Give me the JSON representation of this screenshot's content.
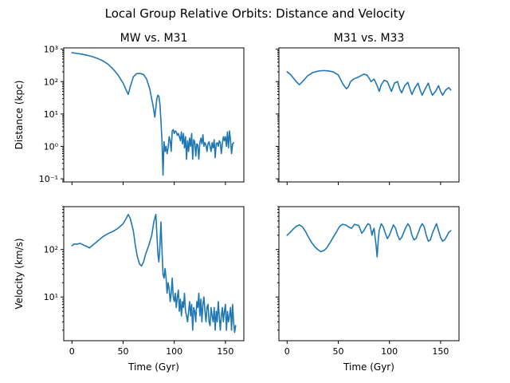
{
  "title": "Local Group Relative Orbits: Distance and Velocity",
  "colors": {
    "series": "#1f77b4"
  },
  "chart_data": [
    {
      "type": "line",
      "title": "MW vs. M31",
      "xlabel": "",
      "ylabel": "Distance (kpc)",
      "yscale": "log",
      "xlim": [
        -8,
        168
      ],
      "ylim": [
        0.08,
        1100
      ],
      "yticks": [
        {
          "v": 0.1,
          "label": "10⁻¹"
        },
        {
          "v": 1,
          "label": "10⁰"
        },
        {
          "v": 10,
          "label": "10¹"
        },
        {
          "v": 100,
          "label": "10²"
        },
        {
          "v": 1000,
          "label": "10³"
        }
      ],
      "xticks": [
        {
          "v": 0,
          "label": ""
        },
        {
          "v": 50,
          "label": ""
        },
        {
          "v": 100,
          "label": ""
        },
        {
          "v": 150,
          "label": ""
        }
      ],
      "series": [
        {
          "x": [
            0,
            5,
            10,
            15,
            20,
            25,
            30,
            35,
            40,
            45,
            50,
            53,
            55,
            57,
            60,
            63,
            66,
            70,
            73,
            76,
            79,
            81,
            83,
            84,
            85,
            86,
            87,
            88,
            89,
            90,
            91,
            92,
            93,
            94,
            95,
            96,
            97,
            98,
            99,
            100,
            101,
            102,
            103,
            104,
            105,
            106,
            107,
            108,
            109,
            110,
            111,
            112,
            113,
            114,
            115,
            116,
            117,
            118,
            119,
            120,
            121,
            122,
            123,
            124,
            125,
            126,
            127,
            128,
            129,
            130,
            131,
            132,
            133,
            134,
            135,
            136,
            137,
            138,
            139,
            140,
            141,
            142,
            143,
            144,
            145,
            146,
            147,
            148,
            149,
            150,
            151,
            152,
            153,
            154,
            155,
            156,
            157,
            158
          ],
          "y": [
            780,
            740,
            700,
            650,
            590,
            520,
            440,
            350,
            250,
            160,
            90,
            55,
            40,
            70,
            140,
            175,
            180,
            165,
            120,
            60,
            20,
            8,
            30,
            38,
            35,
            20,
            6,
            1.5,
            0.13,
            1.4,
            0.7,
            1.0,
            0.6,
            0.9,
            2.0,
            1.5,
            0.7,
            3.0,
            3.3,
            2.5,
            3.0,
            2.8,
            2.2,
            2.5,
            2.0,
            1.5,
            2.8,
            1.2,
            2.5,
            0.9,
            2.0,
            0.4,
            1.5,
            0.7,
            1.8,
            1.0,
            2.5,
            0.4,
            1.6,
            1.4,
            0.5,
            1.2,
            1.1,
            0.4,
            1.3,
            1.8,
            1.2,
            2.3,
            1.0,
            1.3,
            1.1,
            0.7,
            1.2,
            1.4,
            1.0,
            0.7,
            1.3,
            0.9,
            1.6,
            0.45,
            1.2,
            1.3,
            1.0,
            1.5,
            1.3,
            0.6,
            1.2,
            2.0,
            1.5,
            2.0,
            1.0,
            2.8,
            0.9,
            3.0,
            1.5,
            0.6,
            1.2,
            1.3
          ]
        }
      ]
    },
    {
      "type": "line",
      "title": "M31 vs. M33",
      "xlabel": "",
      "ylabel": "",
      "yscale": "log",
      "xlim": [
        -8,
        168
      ],
      "ylim": [
        0.08,
        1100
      ],
      "yticks": [
        {
          "v": 0.1,
          "label": ""
        },
        {
          "v": 1,
          "label": ""
        },
        {
          "v": 10,
          "label": ""
        },
        {
          "v": 100,
          "label": ""
        },
        {
          "v": 1000,
          "label": ""
        }
      ],
      "xticks": [
        {
          "v": 0,
          "label": ""
        },
        {
          "v": 50,
          "label": ""
        },
        {
          "v": 100,
          "label": ""
        },
        {
          "v": 150,
          "label": ""
        }
      ],
      "series": [
        {
          "x": [
            0,
            3,
            6,
            9,
            12,
            15,
            20,
            25,
            30,
            35,
            40,
            45,
            50,
            55,
            58,
            60,
            62,
            65,
            70,
            75,
            78,
            80,
            82,
            85,
            88,
            90,
            92,
            95,
            98,
            100,
            102,
            105,
            108,
            110,
            112,
            115,
            118,
            120,
            122,
            125,
            128,
            130,
            132,
            135,
            138,
            140,
            142,
            145,
            148,
            150,
            152,
            155,
            158,
            160
          ],
          "y": [
            200,
            170,
            130,
            100,
            80,
            100,
            150,
            190,
            210,
            220,
            215,
            200,
            160,
            80,
            60,
            70,
            100,
            120,
            140,
            170,
            160,
            130,
            100,
            120,
            75,
            50,
            80,
            110,
            100,
            70,
            50,
            90,
            100,
            60,
            45,
            75,
            95,
            60,
            40,
            65,
            90,
            55,
            38,
            60,
            90,
            55,
            38,
            50,
            75,
            50,
            38,
            55,
            65,
            55
          ]
        }
      ]
    },
    {
      "type": "line",
      "title": "",
      "xlabel": "Time (Gyr)",
      "ylabel": "Velocity (km/s)",
      "yscale": "log",
      "xlim": [
        -8,
        168
      ],
      "ylim": [
        1.2,
        800
      ],
      "yticks": [
        {
          "v": 10,
          "label": "10¹"
        },
        {
          "v": 100,
          "label": "10²"
        }
      ],
      "xticks": [
        {
          "v": 0,
          "label": "0"
        },
        {
          "v": 50,
          "label": "50"
        },
        {
          "v": 100,
          "label": "100"
        },
        {
          "v": 150,
          "label": "150"
        }
      ],
      "series": [
        {
          "x": [
            0,
            2,
            5,
            8,
            11,
            14,
            17,
            20,
            25,
            30,
            35,
            40,
            45,
            50,
            53,
            55,
            57,
            60,
            62,
            64,
            66,
            68,
            70,
            72,
            75,
            78,
            80,
            82,
            84,
            85,
            86,
            87,
            88,
            89,
            90,
            91,
            92,
            93,
            94,
            95,
            96,
            97,
            98,
            99,
            100,
            101,
            102,
            103,
            104,
            105,
            106,
            107,
            108,
            109,
            110,
            111,
            112,
            113,
            114,
            115,
            116,
            117,
            118,
            119,
            120,
            121,
            122,
            123,
            124,
            125,
            126,
            127,
            128,
            129,
            130,
            131,
            132,
            133,
            134,
            135,
            136,
            137,
            138,
            139,
            140,
            141,
            142,
            143,
            144,
            145,
            146,
            147,
            148,
            149,
            150,
            151,
            152,
            153,
            154,
            155,
            156,
            157,
            158,
            159,
            160
          ],
          "y": [
            120,
            130,
            130,
            135,
            125,
            118,
            108,
            122,
            150,
            185,
            215,
            240,
            280,
            350,
            450,
            550,
            450,
            250,
            120,
            70,
            50,
            45,
            55,
            80,
            120,
            200,
            380,
            550,
            80,
            55,
            120,
            380,
            100,
            30,
            25,
            40,
            25,
            12,
            20,
            15,
            8,
            12,
            25,
            10,
            8,
            12,
            6,
            10,
            14,
            5,
            9,
            4,
            8,
            6,
            12,
            5,
            4,
            3,
            5,
            8,
            4,
            7,
            2,
            6,
            5,
            3,
            8,
            6,
            12,
            4,
            9,
            3,
            7,
            10,
            5,
            3,
            6,
            7,
            3,
            2.5,
            6,
            4,
            3,
            6,
            2,
            5,
            3,
            8,
            4,
            2,
            4,
            6,
            3,
            5,
            7,
            2,
            5,
            3,
            4,
            6,
            2,
            7,
            3,
            1.8,
            2.5
          ]
        }
      ]
    },
    {
      "type": "line",
      "title": "",
      "xlabel": "Time (Gyr)",
      "ylabel": "",
      "yscale": "log",
      "xlim": [
        -8,
        168
      ],
      "ylim": [
        1.2,
        800
      ],
      "yticks": [
        {
          "v": 10,
          "label": ""
        },
        {
          "v": 100,
          "label": ""
        }
      ],
      "xticks": [
        {
          "v": 0,
          "label": "0"
        },
        {
          "v": 50,
          "label": "50"
        },
        {
          "v": 100,
          "label": "100"
        },
        {
          "v": 150,
          "label": "150"
        }
      ],
      "series": [
        {
          "x": [
            0,
            3,
            6,
            9,
            12,
            15,
            18,
            21,
            24,
            27,
            30,
            33,
            36,
            39,
            42,
            45,
            48,
            51,
            54,
            57,
            60,
            63,
            66,
            70,
            73,
            75,
            77,
            79,
            81,
            83,
            84,
            85,
            86,
            87,
            88,
            89,
            90,
            92,
            94,
            96,
            98,
            100,
            102,
            104,
            106,
            108,
            110,
            112,
            114,
            116,
            118,
            120,
            122,
            124,
            126,
            128,
            130,
            132,
            134,
            136,
            138,
            140,
            142,
            144,
            146,
            148,
            150,
            152,
            154,
            156,
            158,
            160
          ],
          "y": [
            200,
            230,
            270,
            310,
            330,
            300,
            240,
            180,
            140,
            115,
            100,
            90,
            95,
            110,
            140,
            180,
            230,
            300,
            340,
            330,
            300,
            280,
            340,
            320,
            220,
            250,
            300,
            350,
            330,
            200,
            250,
            280,
            180,
            120,
            70,
            150,
            250,
            350,
            300,
            220,
            170,
            200,
            260,
            330,
            280,
            200,
            160,
            180,
            230,
            290,
            350,
            300,
            200,
            160,
            170,
            220,
            290,
            350,
            300,
            200,
            150,
            160,
            220,
            280,
            350,
            250,
            180,
            150,
            160,
            190,
            230,
            250
          ]
        }
      ]
    }
  ]
}
